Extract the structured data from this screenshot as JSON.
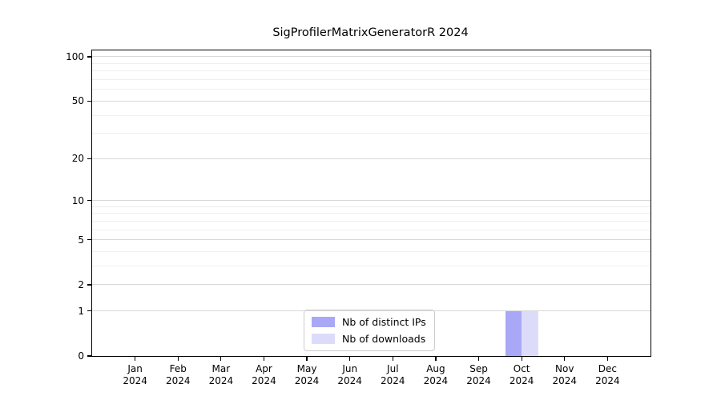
{
  "title": "SigProfilerMatrixGeneratorR 2024",
  "colors": {
    "distinct_ips_bar": "#a8a8f7",
    "downloads_bar": "#dcdcfa",
    "major_gridline": "#d8d8d8",
    "minor_gridline": "#efefef",
    "axis_frame": "#000000",
    "legend_border": "#cccccc",
    "background": "#ffffff"
  },
  "chart_data": {
    "type": "bar",
    "title": "SigProfilerMatrixGeneratorR 2024",
    "categories": [
      "Jan 2024",
      "Feb 2024",
      "Mar 2024",
      "Apr 2024",
      "May 2024",
      "Jun 2024",
      "Jul 2024",
      "Aug 2024",
      "Sep 2024",
      "Oct 2024",
      "Nov 2024",
      "Dec 2024"
    ],
    "series": [
      {
        "name": "Nb of distinct IPs",
        "color": "#a8a8f7",
        "values": [
          0,
          0,
          0,
          0,
          0,
          0,
          0,
          0,
          0,
          1,
          0,
          0
        ]
      },
      {
        "name": "Nb of downloads",
        "color": "#dcdcfa",
        "values": [
          0,
          0,
          0,
          0,
          0,
          0,
          0,
          0,
          0,
          1,
          0,
          0
        ]
      }
    ],
    "xlabel": "",
    "ylabel": "",
    "yscale": "log1p",
    "ylim": [
      0,
      110
    ],
    "yticks": [
      0,
      1,
      2,
      5,
      10,
      20,
      50,
      100
    ],
    "minor_yticks": [
      3,
      4,
      6,
      7,
      8,
      9,
      30,
      40,
      60,
      70,
      80,
      90
    ],
    "grid": true,
    "legend_position": "bottom-center"
  }
}
